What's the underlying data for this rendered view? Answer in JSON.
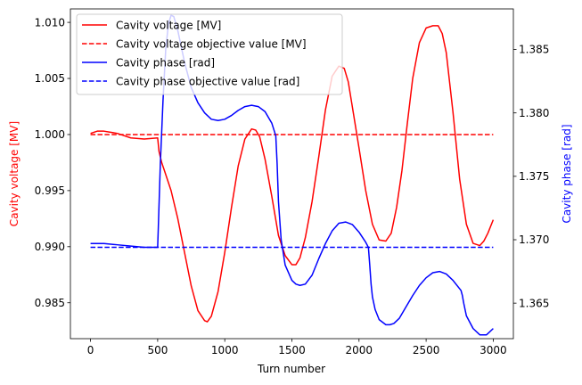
{
  "chart_data": {
    "type": "line",
    "title": "",
    "xlabel": "Turn number",
    "ylabel_left": "Cavity voltage [MV]",
    "ylabel_right": "Cavity phase [rad]",
    "xlim": [
      -150,
      3150
    ],
    "ylim_left": [
      0.9818,
      1.0112
    ],
    "ylim_right": [
      1.3622,
      1.3882
    ],
    "x_ticks": [
      0,
      500,
      1000,
      1500,
      2000,
      2500,
      3000
    ],
    "y_left_ticks": [
      0.985,
      0.99,
      0.995,
      1.0,
      1.005,
      1.01
    ],
    "y_left_tick_labels": [
      "0.985",
      "0.990",
      "0.995",
      "1.000",
      "1.005",
      "1.010"
    ],
    "y_right_ticks": [
      1.365,
      1.37,
      1.375,
      1.38,
      1.385
    ],
    "y_right_tick_labels": [
      "1.365",
      "1.370",
      "1.375",
      "1.380",
      "1.385"
    ],
    "grid": false,
    "legend_position": "top-left",
    "series": [
      {
        "name": "Cavity voltage [MV]",
        "axis": "left",
        "color": "#ff0000",
        "dash": "solid",
        "x": [
          0,
          50,
          100,
          200,
          300,
          400,
          500,
          510,
          530,
          550,
          600,
          650,
          700,
          750,
          800,
          850,
          870,
          900,
          950,
          1000,
          1050,
          1100,
          1150,
          1200,
          1230,
          1260,
          1300,
          1350,
          1400,
          1450,
          1500,
          1530,
          1560,
          1600,
          1650,
          1700,
          1750,
          1800,
          1850,
          1890,
          1920,
          1950,
          2000,
          2050,
          2100,
          2150,
          2200,
          2240,
          2280,
          2320,
          2360,
          2400,
          2450,
          2500,
          2550,
          2590,
          2620,
          2650,
          2700,
          2750,
          2800,
          2850,
          2900,
          2930,
          2960,
          3000
        ],
        "y": [
          1.0001,
          1.0003,
          1.0003,
          1.0001,
          0.9997,
          0.9996,
          0.9997,
          0.9985,
          0.9975,
          0.9968,
          0.995,
          0.9925,
          0.9895,
          0.9865,
          0.9843,
          0.9834,
          0.9833,
          0.9838,
          0.986,
          0.9895,
          0.9935,
          0.9972,
          0.9996,
          1.0005,
          1.0004,
          0.9998,
          0.9978,
          0.9945,
          0.991,
          0.9892,
          0.9884,
          0.9884,
          0.989,
          0.9908,
          0.994,
          0.998,
          1.0022,
          1.0052,
          1.0061,
          1.0059,
          1.0047,
          1.0025,
          0.9988,
          0.995,
          0.992,
          0.9906,
          0.9905,
          0.9912,
          0.9935,
          0.9968,
          1.001,
          1.005,
          1.0082,
          1.0095,
          1.0097,
          1.0097,
          1.009,
          1.0073,
          1.002,
          0.996,
          0.992,
          0.9903,
          0.9901,
          0.9905,
          0.9912,
          0.9924
        ]
      },
      {
        "name": "Cavity voltage objective value [MV]",
        "axis": "left",
        "color": "#ff0000",
        "dash": "dashed",
        "x": [
          0,
          3000
        ],
        "y": [
          1.0,
          1.0
        ]
      },
      {
        "name": "Cavity phase [rad]",
        "axis": "right",
        "color": "#0000ff",
        "dash": "solid",
        "x": [
          0,
          100,
          200,
          300,
          400,
          500,
          505,
          520,
          540,
          560,
          580,
          600,
          620,
          650,
          700,
          750,
          800,
          850,
          900,
          950,
          1000,
          1050,
          1100,
          1150,
          1200,
          1250,
          1300,
          1350,
          1380,
          1390,
          1400,
          1420,
          1450,
          1500,
          1530,
          1560,
          1600,
          1650,
          1700,
          1750,
          1800,
          1850,
          1900,
          1950,
          2000,
          2050,
          2070,
          2080,
          2090,
          2100,
          2120,
          2150,
          2200,
          2230,
          2260,
          2300,
          2350,
          2400,
          2450,
          2500,
          2550,
          2600,
          2650,
          2700,
          2760,
          2770,
          2780,
          2800,
          2850,
          2900,
          2950,
          3000
        ],
        "y": [
          1.3697,
          1.3697,
          1.3696,
          1.3695,
          1.3694,
          1.3694,
          1.371,
          1.376,
          1.381,
          1.385,
          1.387,
          1.3877,
          1.3876,
          1.3865,
          1.384,
          1.382,
          1.3808,
          1.38,
          1.3795,
          1.3794,
          1.3795,
          1.3798,
          1.3802,
          1.3805,
          1.3806,
          1.3805,
          1.3801,
          1.3792,
          1.3782,
          1.376,
          1.373,
          1.37,
          1.368,
          1.3668,
          1.3665,
          1.3664,
          1.3665,
          1.3672,
          1.3685,
          1.3697,
          1.3707,
          1.3713,
          1.3714,
          1.3712,
          1.3706,
          1.3698,
          1.3694,
          1.368,
          1.3665,
          1.3655,
          1.3645,
          1.3637,
          1.3633,
          1.3633,
          1.3634,
          1.3638,
          1.3647,
          1.3656,
          1.3664,
          1.367,
          1.3674,
          1.3675,
          1.3673,
          1.3668,
          1.366,
          1.3656,
          1.365,
          1.364,
          1.363,
          1.3625,
          1.3625,
          1.363
        ]
      },
      {
        "name": "Cavity phase objective value [rad]",
        "axis": "right",
        "color": "#0000ff",
        "dash": "dashed",
        "x": [
          0,
          3000
        ],
        "y": [
          1.3694,
          1.3694
        ]
      }
    ]
  }
}
